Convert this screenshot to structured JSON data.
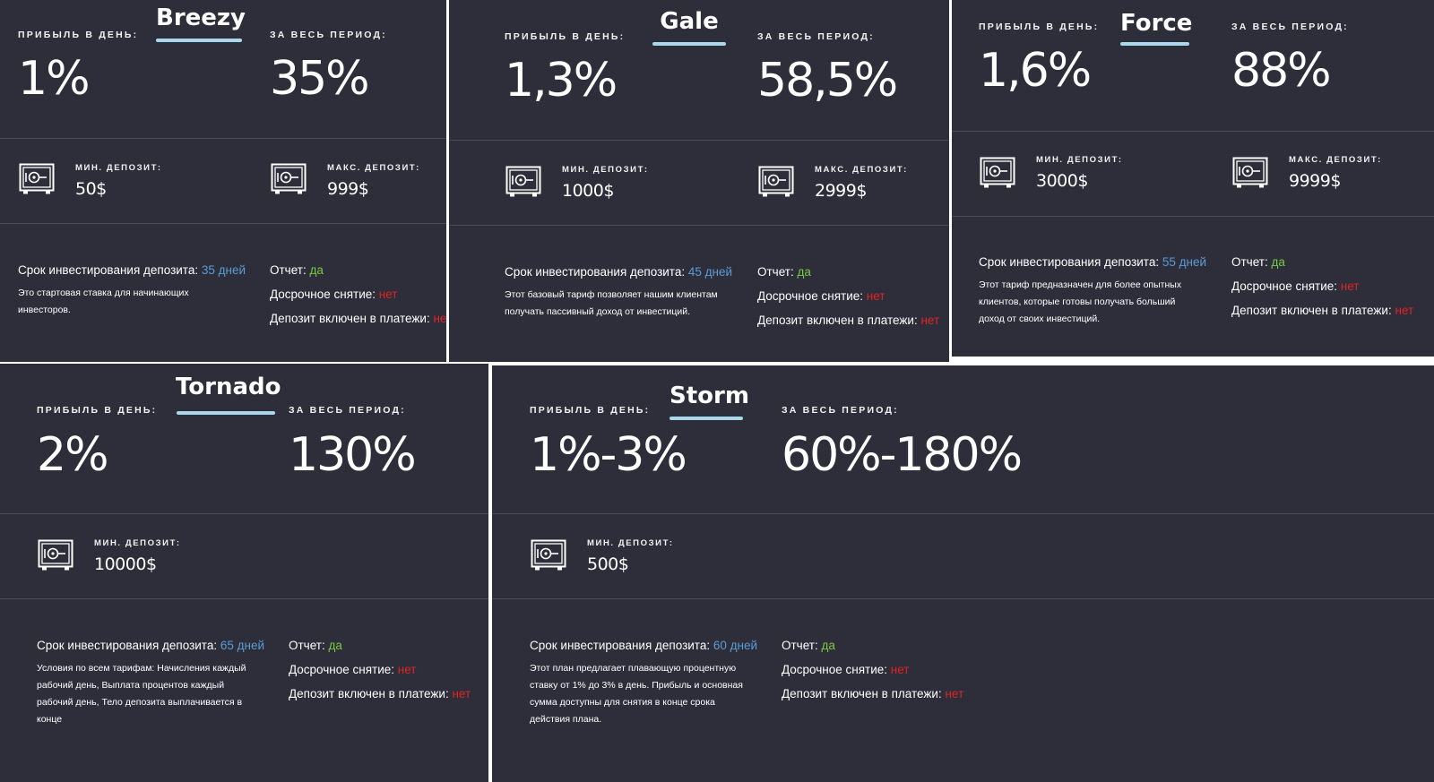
{
  "colors": {
    "card_bg": "#2d2e3a",
    "accent_underline": "#a8d8ec",
    "days": "#5b9bd5",
    "yes": "#7ac943",
    "no": "#e02424"
  },
  "labels": {
    "daily": "ПРИБЫЛЬ В ДЕНЬ:",
    "total": "ЗА ВЕСЬ ПЕРИОД:",
    "min_dep": "МИН. ДЕПОЗИТ:",
    "max_dep": "МАКС. ДЕПОЗИТ:",
    "term": "Срок инвестирования депозита:",
    "report": "Отчет:",
    "early": "Досрочное снятие:",
    "included": "Депозит включен в платежи:",
    "yes": "да",
    "no": "нет"
  },
  "plans": [
    {
      "name": "Breezy",
      "daily": "1%",
      "total": "35%",
      "min": "50$",
      "max": "999$",
      "days": "35 дней",
      "desc": "Это стартовая ставка для начинающих инвесторов.",
      "report": "да",
      "early": "нет",
      "included": "нет"
    },
    {
      "name": "Gale",
      "daily": "1,3%",
      "total": "58,5%",
      "min": "1000$",
      "max": "2999$",
      "days": "45 дней",
      "desc": "Этот базовый тариф позволяет нашим клиентам получать пассивный доход от инвестиций.",
      "report": "да",
      "early": "нет",
      "included": "нет"
    },
    {
      "name": "Force",
      "daily": "1,6%",
      "total": "88%",
      "min": "3000$",
      "max": "9999$",
      "days": "55 дней",
      "desc": "Этот тариф предназначен для более опытных клиентов, которые готовы получать больший доход от своих инвестиций.",
      "report": "да",
      "early": "нет",
      "included": "нет"
    },
    {
      "name": "Tornado",
      "daily": "2%",
      "total": "130%",
      "min": "10000$",
      "days": "65 дней",
      "desc": "Условия по всем тарифам: Начисления каждый рабочий день, Выплата процентов каждый рабочий день, Тело депозита выплачивается в конце",
      "report": "да",
      "early": "нет",
      "included": "нет"
    },
    {
      "name": "Storm",
      "daily": "1%-3%",
      "total": "60%-180%",
      "min": "500$",
      "days": "60 дней",
      "desc": "Этот план предлагает плавающую процентную ставку от 1% до 3% в день. Прибыль и основная сумма доступны для снятия в конце срока действия плана.",
      "report": "да",
      "early": "нет",
      "included": "нет"
    }
  ]
}
